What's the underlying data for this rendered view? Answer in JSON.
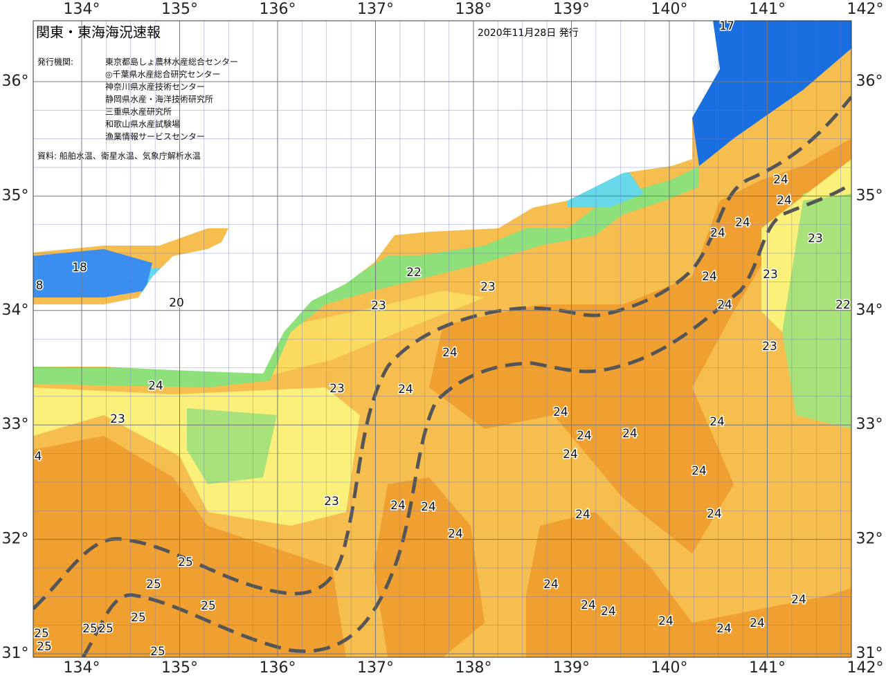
{
  "map": {
    "title": "関東・東海海況速報",
    "date": "2020年11月28日 発行",
    "issuer_label": "発行機関:",
    "issuers": [
      "東京都島しょ農林水産総合センター",
      "◎千葉県水産総合研究センター",
      "神奈川県水産技術センター",
      "静岡県水産・海洋技術研究所",
      "三重県水産研究所",
      "和歌山県水産試験場",
      "漁業情報サービスセンター"
    ],
    "source": "資料: 船舶水温、衛星水温、気象庁解析水温",
    "lon_ticks": [
      {
        "value": 134,
        "label": "134°"
      },
      {
        "value": 135,
        "label": "135°"
      },
      {
        "value": 136,
        "label": "136°"
      },
      {
        "value": 137,
        "label": "137°"
      },
      {
        "value": 138,
        "label": "138°"
      },
      {
        "value": 139,
        "label": "139°"
      },
      {
        "value": 140,
        "label": "140°"
      },
      {
        "value": 141,
        "label": "141°"
      },
      {
        "value": 142,
        "label": "142°"
      }
    ],
    "lat_ticks": [
      {
        "value": 36,
        "label": "36°"
      },
      {
        "value": 35,
        "label": "35°"
      },
      {
        "value": 34,
        "label": "34°"
      },
      {
        "value": 33,
        "label": "33°"
      },
      {
        "value": 32,
        "label": "32°"
      },
      {
        "value": 31,
        "label": "31°"
      }
    ],
    "contour_labels": [
      "17",
      "18",
      "8",
      "20",
      "22",
      "23",
      "23",
      "24",
      "24",
      "24",
      "24",
      "24",
      "23",
      "24",
      "23",
      "24",
      "22",
      "23",
      "24",
      "23",
      "24",
      "23",
      "24",
      "24",
      "24",
      "24",
      "24",
      "4",
      "24",
      "23",
      "24",
      "24",
      "24",
      "24",
      "24",
      "25",
      "25",
      "24",
      "25",
      "24",
      "24",
      "25",
      "24",
      "24",
      "24",
      "24",
      "25",
      "25",
      "25",
      "25",
      "25"
    ]
  }
}
